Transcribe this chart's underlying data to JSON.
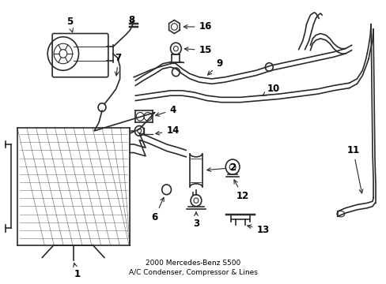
{
  "title": "2000 Mercedes-Benz S500\nA/C Condenser, Compressor & Lines",
  "background_color": "#ffffff",
  "line_color": "#2a2a2a",
  "text_color": "#000000",
  "fig_width": 4.89,
  "fig_height": 3.6,
  "dpi": 100
}
